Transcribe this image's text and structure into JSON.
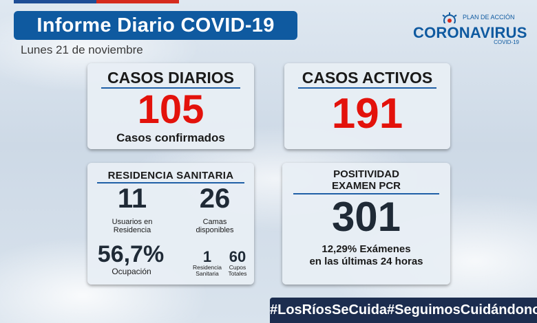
{
  "header": {
    "title": "Informe Diario COVID-19",
    "date": "Lunes 21 de noviembre"
  },
  "logo": {
    "line1": "PLAN DE ACCIÓN",
    "line2": "CORONAVIRUS",
    "line3": "COVID-19"
  },
  "casos_diarios": {
    "title": "CASOS DIARIOS",
    "value": "105",
    "caption": "Casos confirmados"
  },
  "casos_activos": {
    "title": "CASOS ACTIVOS",
    "value": "191"
  },
  "residencia": {
    "title": "RESIDENCIA SANITARIA",
    "usuarios_value": "11",
    "usuarios_label_1": "Usuarios en",
    "usuarios_label_2": "Residencia",
    "camas_value": "26",
    "camas_label_1": "Camas",
    "camas_label_2": "disponibles",
    "ocupacion_value": "56,7%",
    "ocupacion_label": "Ocupación",
    "residencias_value": "1",
    "residencias_label_1": "Residencia",
    "residencias_label_2": "Sanitaria",
    "cupos_value": "60",
    "cupos_label_1": "Cupos",
    "cupos_label_2": "Totales"
  },
  "positividad": {
    "title_1": "POSITIVIDAD",
    "title_2": "EXAMEN PCR",
    "value": "301",
    "caption_1": "12,29% Exámenes",
    "caption_2": "en las últimas 24 horas"
  },
  "hashtags": [
    "#LosRíosSeCuida",
    "#SeguimosCuidándonos"
  ],
  "colors": {
    "title_blue": "#0f5aa0",
    "accent_red": "#e3120b",
    "hashtag_bg": "#1c2d4f"
  }
}
